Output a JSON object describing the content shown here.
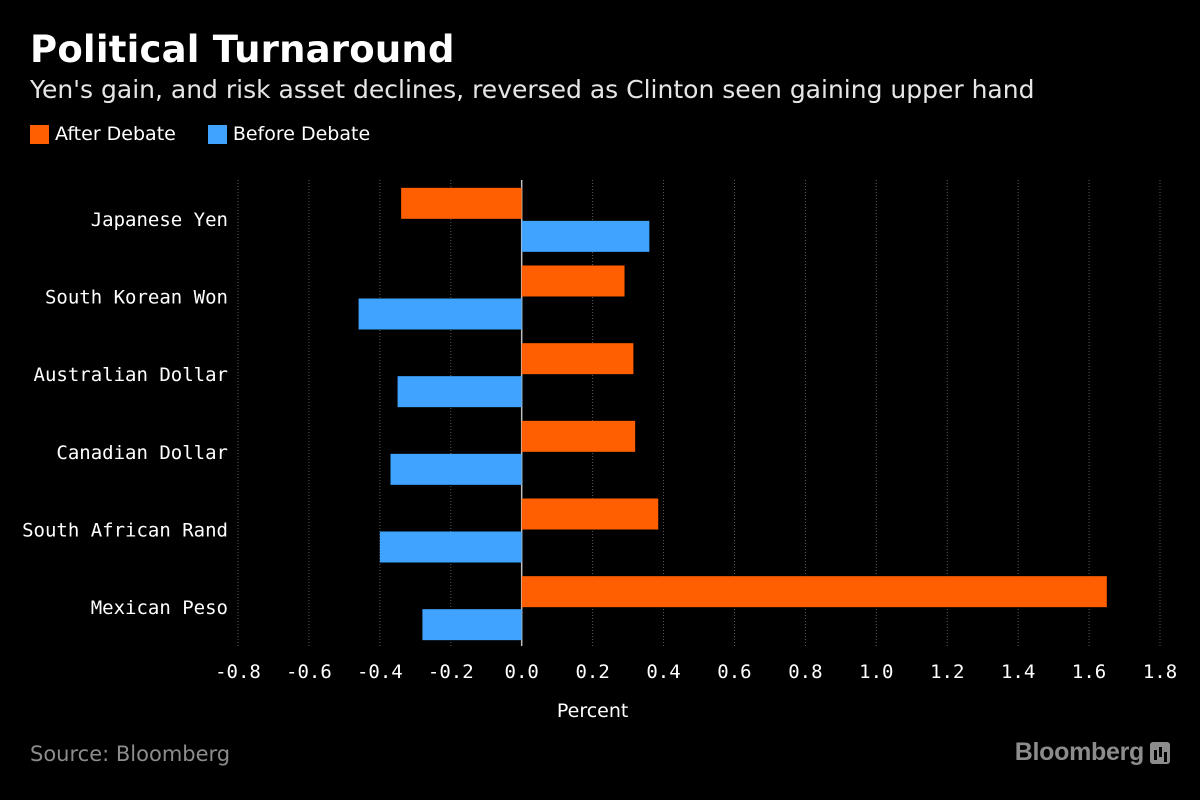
{
  "chart_data": {
    "type": "bar",
    "orientation": "horizontal",
    "title": "Political Turnaround",
    "subtitle": "Yen's gain, and risk asset declines, reversed as Clinton seen gaining upper hand",
    "categories": [
      "Japanese Yen",
      "South Korean Won",
      "Australian Dollar",
      "Canadian Dollar",
      "South African Rand",
      "Mexican Peso"
    ],
    "series": [
      {
        "name": "After Debate",
        "color": "#ff5f00",
        "values": [
          -0.34,
          0.29,
          0.315,
          0.32,
          0.385,
          1.65
        ]
      },
      {
        "name": "Before Debate",
        "color": "#3fa3ff",
        "values": [
          0.36,
          -0.46,
          -0.35,
          -0.37,
          -0.4,
          -0.28
        ]
      }
    ],
    "xlabel": "Percent",
    "ylabel": "",
    "xlim": [
      -0.8,
      1.8
    ],
    "xticks": [
      "-0.8",
      "-0.6",
      "-0.4",
      "-0.2",
      "0.0",
      "0.2",
      "0.4",
      "0.6",
      "0.8",
      "1.0",
      "1.2",
      "1.4",
      "1.6",
      "1.8"
    ],
    "grid": true,
    "legend_position": "top-left"
  },
  "footer": {
    "source": "Source: Bloomberg",
    "brand": "Bloomberg"
  }
}
